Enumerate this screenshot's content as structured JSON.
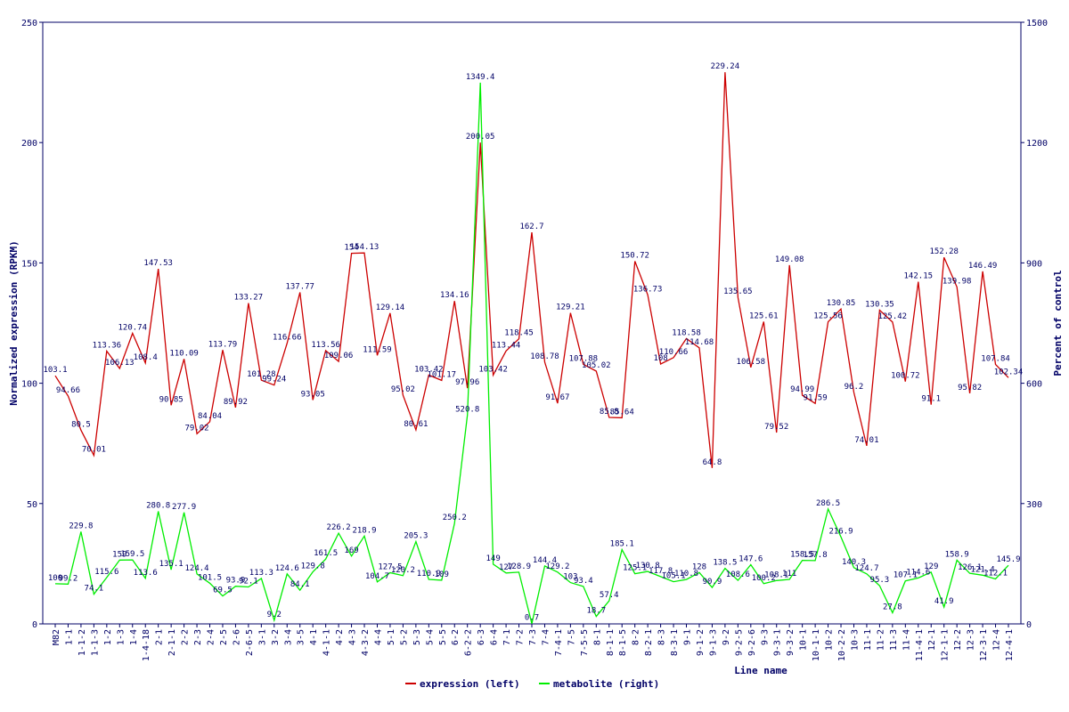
{
  "chart_data": {
    "type": "line",
    "xlabel": "Line name",
    "ylabel_left": "Normalized expression (RPKM)",
    "ylabel_right": "Percent of control",
    "ylim_left": [
      0,
      250
    ],
    "yticks_left": [
      0,
      50,
      100,
      150,
      200,
      250
    ],
    "ylim_right": [
      0,
      1500
    ],
    "yticks_right": [
      0,
      300,
      600,
      900,
      1200,
      1500
    ],
    "grid": false,
    "legend_position": "bottom-center",
    "categories": [
      "M82",
      "1-1",
      "1-1-2",
      "1-1-3",
      "1-2",
      "1-3",
      "1-4",
      "1-4-18",
      "2-1",
      "2-1-1",
      "2-2",
      "2-3",
      "2-4",
      "2-5",
      "2-6",
      "2-6-5",
      "3-1",
      "3-2",
      "3-4",
      "3-5",
      "4-1",
      "4-1-1",
      "4-2",
      "4-3",
      "4-3-2",
      "4-4",
      "5-1",
      "5-2",
      "5-3",
      "5-4",
      "5-5",
      "6-2",
      "6-2-2",
      "6-3",
      "6-4",
      "7-1",
      "7-2",
      "7-3",
      "7-4",
      "7-4-1",
      "7-5",
      "7-5-5",
      "8-1",
      "8-1-1",
      "8-1-5",
      "8-2",
      "8-2-1",
      "8-3",
      "8-3-1",
      "9-1",
      "9-1-2",
      "9-1-3",
      "9-2",
      "9-2-5",
      "9-2-6",
      "9-3",
      "9-3-1",
      "9-3-2",
      "10-1",
      "10-1-1",
      "10-2",
      "10-2-2",
      "10-3",
      "11-1",
      "11-2",
      "11-3",
      "11-4",
      "11-4-1",
      "12-1",
      "12-1-1",
      "12-2",
      "12-3",
      "12-3-1",
      "12-4",
      "12-4-1"
    ],
    "series": [
      {
        "name": "expression (left)",
        "axis": "left",
        "color": "#cc0000",
        "values": [
          103.1,
          94.66,
          80.5,
          70.01,
          113.36,
          106.13,
          120.74,
          108.4,
          147.53,
          90.85,
          110.09,
          79.02,
          84.04,
          113.79,
          89.92,
          133.27,
          101.28,
          99.24,
          116.66,
          137.77,
          93.05,
          113.56,
          109.06,
          154,
          154.13,
          111.59,
          129.14,
          95.02,
          80.61,
          103.42,
          101.17,
          134.16,
          97.96,
          200.05,
          103.42,
          113.44,
          118.45,
          162.7,
          108.78,
          91.67,
          129.21,
          107.88,
          105.02,
          85.8,
          85.64,
          150.72,
          136.73,
          108,
          110.66,
          118.58,
          114.68,
          64.8,
          229.24,
          135.65,
          106.58,
          125.61,
          79.52,
          149.08,
          94.99,
          91.59,
          125.56,
          130.85,
          96.2,
          74.01,
          130.35,
          125.42,
          100.72,
          142.15,
          91.1,
          152.28,
          139.98,
          95.82,
          146.49,
          107.84,
          102.34
        ]
      },
      {
        "name": "metabolite (right)",
        "axis": "right",
        "color": "#00ee00",
        "values": [
          100,
          99.2,
          229.8,
          74.1,
          115.6,
          159,
          159.5,
          113.6,
          280.8,
          135.1,
          277.9,
          124.4,
          101.5,
          69.5,
          93.9,
          92.1,
          113.3,
          9.2,
          124.6,
          84.1,
          129.8,
          161.5,
          226.2,
          169,
          218.9,
          104.7,
          127.5,
          120.2,
          205.3,
          110.9,
          109,
          250.2,
          520.8,
          1349.4,
          149,
          127,
          128.9,
          0.7,
          144.4,
          129.2,
          103,
          93.4,
          18.7,
          57.4,
          185.1,
          125.1,
          130.8,
          117.8,
          105.1,
          110.8,
          128,
          90.9,
          138.5,
          108.6,
          147.6,
          100.2,
          108.1,
          111,
          158.5,
          157.8,
          286.5,
          216.9,
          140.3,
          124.7,
          95.3,
          27.8,
          107.1,
          114.6,
          129,
          41.9,
          158.9,
          126.1,
          121.4,
          112.1,
          145.9
        ]
      }
    ],
    "legend": [
      "expression (left)",
      "metabolite (right)"
    ]
  }
}
